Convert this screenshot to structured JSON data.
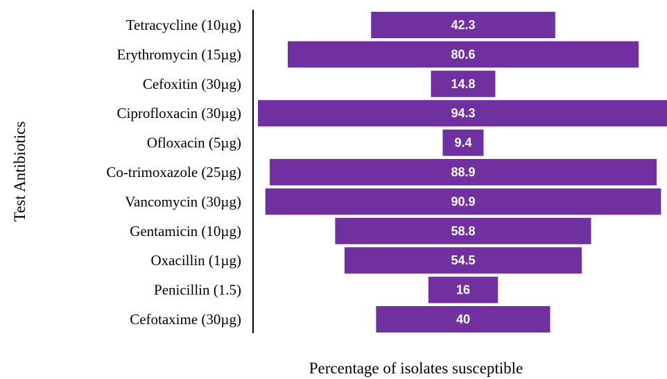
{
  "chart_data": {
    "type": "bar",
    "orientation": "horizontal",
    "layout": "centered-funnel",
    "categories": [
      "Tetracycline (10µg)",
      "Erythromycin (15µg)",
      "Cefoxitin (30µg)",
      "Ciprofloxacin (30µg)",
      "Ofloxacin (5µg)",
      "Co-trimoxazole (25µg)",
      "Vancomycin (30µg)",
      "Gentamicin (10µg)",
      "Oxacillin (1µg)",
      "Penicillin (1.5)",
      "Cefotaxime (30µg)"
    ],
    "values": [
      42.3,
      80.6,
      14.8,
      94.3,
      9.4,
      88.9,
      90.9,
      58.8,
      54.5,
      16,
      40
    ],
    "value_labels": [
      "42.3",
      "80.6",
      "14.8",
      "94.3",
      "9.4",
      "88.9",
      "90.9",
      "58.8",
      "54.5",
      "16",
      "40"
    ],
    "title": "",
    "xlabel": "Percentage of isolates susceptible",
    "ylabel": "Test Antibiotics",
    "xlim": [
      0,
      94.3
    ],
    "grid": false,
    "legend": "none",
    "bar_color": "#7030A0",
    "value_label_color": "#ffffff"
  }
}
